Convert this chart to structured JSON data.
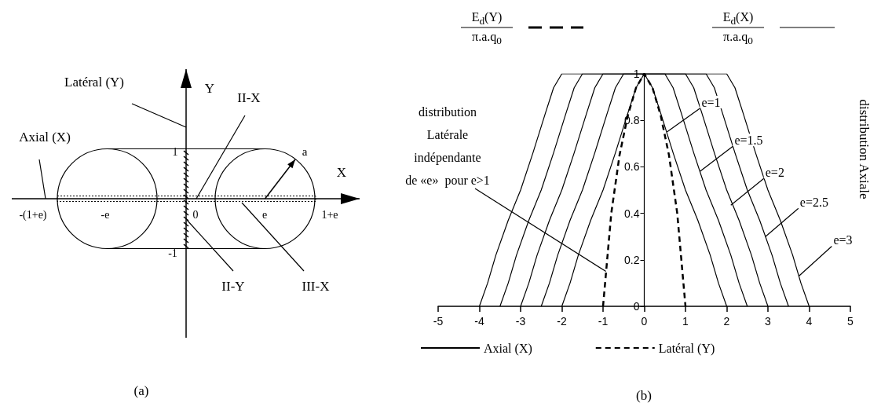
{
  "chart_data": [
    {
      "type": "other",
      "title": "(a)",
      "annotations": [
        "Latéral (Y)",
        "Axial (X)",
        "Y",
        "X",
        "II-X",
        "II-Y",
        "III-X",
        "a",
        "1",
        "-1",
        "0",
        "-e",
        "e",
        "-(1+e)",
        "1+e"
      ]
    },
    {
      "type": "line",
      "title": "(b)",
      "xlim": [
        -5,
        5
      ],
      "xticks": [
        -5,
        -4,
        -3,
        -2,
        -1,
        0,
        1,
        2,
        3,
        4,
        5
      ],
      "ylim": [
        0,
        1
      ],
      "yticks": [
        0,
        0.2,
        0.4,
        0.6,
        0.8,
        1
      ],
      "grid": false,
      "legend": "bottom",
      "marker": "none",
      "line_style": "solid",
      "annotations": [
        "E$_{d}$(Y)",
        "π.a.q$_{0}$",
        "E$_{d}$(X)",
        "π.a.q$_{0}$",
        {
          "text": "distribution\nLatérale\nindépendante\nde «e»  pour e>1",
          "x": -0.93,
          "y": 0.15
        },
        "distribution Axiale",
        {
          "text": "e=1",
          "x": 0.55,
          "y": 0.75
        },
        {
          "text": "e=1.5",
          "x": 1.35,
          "y": 0.58
        },
        {
          "text": "e=2",
          "x": 2.1,
          "y": 0.435
        },
        {
          "text": "e=2.5",
          "x": 2.94,
          "y": 0.3
        },
        {
          "text": "e=3",
          "x": 3.75,
          "y": 0.13
        }
      ],
      "series": [
        {
          "name": "Axial (X)",
          "color": "#000000",
          "x": [
            -2,
            -1.8,
            -1.6,
            -1.3,
            -1,
            -0.7,
            -0.4,
            -0.2,
            0,
            0.2,
            0.4,
            0.7,
            1,
            1.3,
            1.6,
            1.8,
            2
          ],
          "values": [
            0,
            0.1,
            0.22,
            0.37,
            0.5,
            0.66,
            0.83,
            0.94,
            1,
            0.94,
            0.83,
            0.66,
            0.5,
            0.37,
            0.22,
            0.1,
            0
          ]
        },
        {
          "color": "#000000",
          "x": [
            -2.5,
            -2.3,
            -2.1,
            -1.8,
            -1.5,
            -1.2,
            -0.9,
            -0.7,
            -0.5,
            0.5,
            0.7,
            0.9,
            1.2,
            1.5,
            1.8,
            2.1,
            2.3,
            2.5
          ],
          "values": [
            0,
            0.1,
            0.22,
            0.37,
            0.5,
            0.66,
            0.83,
            0.94,
            1,
            1,
            0.94,
            0.83,
            0.66,
            0.5,
            0.37,
            0.22,
            0.1,
            0
          ]
        },
        {
          "color": "#000000",
          "x": [
            -3,
            -2.8,
            -2.6,
            -2.3,
            -2,
            -1.7,
            -1.4,
            -1.2,
            -1,
            1,
            1.2,
            1.4,
            1.7,
            2,
            2.3,
            2.6,
            2.8,
            3
          ],
          "values": [
            0,
            0.1,
            0.22,
            0.37,
            0.5,
            0.66,
            0.83,
            0.94,
            1,
            1,
            0.94,
            0.83,
            0.66,
            0.5,
            0.37,
            0.22,
            0.1,
            0
          ]
        },
        {
          "color": "#000000",
          "x": [
            -3.5,
            -3.3,
            -3.1,
            -2.8,
            -2.5,
            -2.2,
            -1.9,
            -1.7,
            -1.5,
            1.5,
            1.7,
            1.9,
            2.2,
            2.5,
            2.8,
            3.1,
            3.3,
            3.5
          ],
          "values": [
            0,
            0.1,
            0.22,
            0.37,
            0.5,
            0.66,
            0.83,
            0.94,
            1,
            1,
            0.94,
            0.83,
            0.66,
            0.5,
            0.37,
            0.22,
            0.1,
            0
          ]
        },
        {
          "color": "#000000",
          "x": [
            -4,
            -3.8,
            -3.6,
            -3.3,
            -3,
            -2.7,
            -2.4,
            -2.2,
            -2,
            2,
            2.2,
            2.4,
            2.7,
            3,
            3.3,
            3.6,
            3.8,
            4
          ],
          "values": [
            0,
            0.1,
            0.22,
            0.37,
            0.5,
            0.66,
            0.83,
            0.94,
            1,
            1,
            0.94,
            0.83,
            0.66,
            0.5,
            0.37,
            0.22,
            0.1,
            0
          ]
        },
        {
          "name": "Latéral (Y)",
          "color": "#000000",
          "line_style": "dashed",
          "x": [
            -1,
            -0.9,
            -0.8,
            -0.6,
            -0.4,
            -0.2,
            0,
            0.2,
            0.4,
            0.6,
            0.8,
            0.9,
            1
          ],
          "values": [
            0,
            0.2,
            0.4,
            0.65,
            0.82,
            0.94,
            1,
            0.94,
            0.82,
            0.65,
            0.4,
            0.2,
            0
          ]
        }
      ]
    }
  ]
}
